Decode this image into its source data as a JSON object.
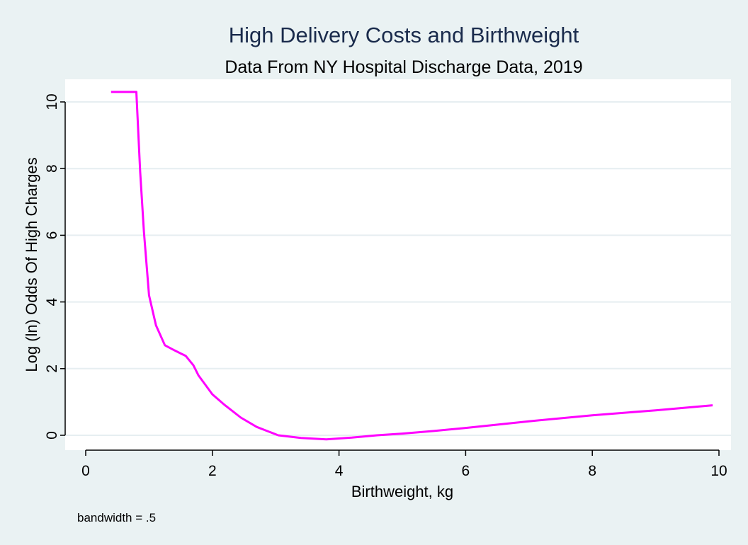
{
  "chart_data": {
    "type": "line",
    "title": "High Delivery Costs and Birthweight",
    "subtitle": "Data From NY Hospital Discharge Data, 2019",
    "xlabel": "Birthweight, kg",
    "ylabel": "Log (ln) Odds Of High Charges",
    "note": "bandwidth = .5",
    "xlim": [
      0,
      10
    ],
    "ylim": [
      0,
      10
    ],
    "xticks": [
      "0",
      "2",
      "4",
      "6",
      "8",
      "10"
    ],
    "yticks": [
      "0",
      "2",
      "4",
      "6",
      "8",
      "10"
    ],
    "grid": true,
    "line_color": "#ff00ff",
    "title_color": "#1a2b4c",
    "series": [
      {
        "x": [
          0.4,
          0.8,
          0.86,
          0.92,
          1.0,
          1.11,
          1.25,
          1.4,
          1.58,
          1.7,
          1.78,
          2.0,
          2.2,
          2.45,
          2.7,
          3.04,
          3.4,
          3.8,
          4.2,
          4.6,
          5.0,
          5.5,
          6.0,
          7.0,
          8.0,
          9.0,
          9.9
        ],
        "y": [
          10.3,
          10.3,
          7.9,
          6.1,
          4.2,
          3.3,
          2.7,
          2.55,
          2.38,
          2.1,
          1.8,
          1.23,
          0.9,
          0.53,
          0.25,
          0.0,
          -0.08,
          -0.12,
          -0.07,
          0.0,
          0.05,
          0.13,
          0.22,
          0.42,
          0.6,
          0.75,
          0.9
        ]
      }
    ]
  }
}
